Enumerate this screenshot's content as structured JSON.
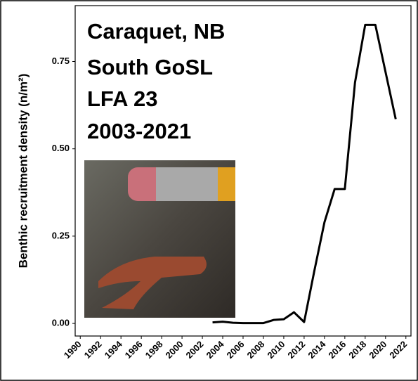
{
  "chart_data": {
    "type": "line",
    "ylabel": "Benthic recruitment density (n/m²)",
    "annotation": [
      "Caraquet, NB",
      "South GoSL",
      "LFA 23",
      "2003-2021"
    ],
    "x": [
      2003,
      2004,
      2005,
      2006,
      2007,
      2008,
      2009,
      2010,
      2011,
      2012,
      2013,
      2014,
      2015,
      2016,
      2017,
      2018,
      2019,
      2020,
      2021
    ],
    "series": [
      {
        "color": "#000000",
        "values": [
          0.003,
          0.005,
          0.002,
          0.001,
          0.001,
          0.001,
          0.01,
          0.012,
          0.032,
          0.004,
          0.15,
          0.29,
          0.385,
          0.385,
          0.69,
          0.855,
          0.855,
          0.72,
          0.585
        ]
      }
    ],
    "xlim": [
      1989.5,
      2022.5
    ],
    "xticks": [
      1990,
      1992,
      1994,
      1996,
      1998,
      2000,
      2002,
      2004,
      2006,
      2008,
      2010,
      2012,
      2014,
      2016,
      2018,
      2020,
      2022
    ],
    "ylim": [
      -0.036,
      0.91
    ],
    "yticks": [
      {
        "value": 0,
        "label": "0.00"
      },
      {
        "value": 0.25,
        "label": "0.25"
      },
      {
        "value": 0.5,
        "label": "0.50"
      },
      {
        "value": 0.75,
        "label": "0.75"
      }
    ]
  }
}
